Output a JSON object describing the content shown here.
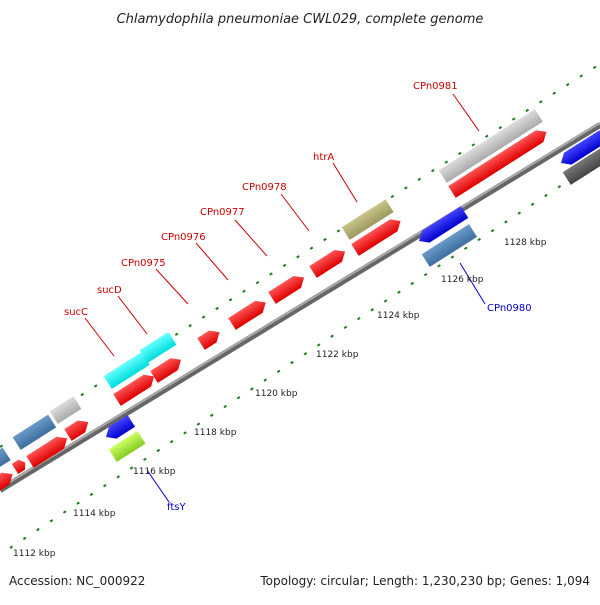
{
  "title": "Chlamydophila pneumoniae CWL029, complete genome",
  "footer": {
    "accession": "Accession: NC_000922",
    "summary": "Topology: circular; Length: 1,230,230 bp; Genes: 1,094"
  },
  "colors": {
    "forward_label": "#cc0000",
    "reverse_label": "#0000cc",
    "backbone": "#888888",
    "tick": "#1f7a1f"
  },
  "scale_ticks": [
    {
      "label": "1112 kbp"
    },
    {
      "label": "1114 kbp"
    },
    {
      "label": "1116 kbp"
    },
    {
      "label": "1118 kbp"
    },
    {
      "label": "1120 kbp"
    },
    {
      "label": "1122 kbp"
    },
    {
      "label": "1124 kbp"
    },
    {
      "label": "1126 kbp"
    },
    {
      "label": "1128 kbp"
    }
  ],
  "gene_labels": [
    {
      "name": "sucC",
      "strand": "forward"
    },
    {
      "name": "sucD",
      "strand": "forward"
    },
    {
      "name": "CPn0975",
      "strand": "forward"
    },
    {
      "name": "CPn0976",
      "strand": "forward"
    },
    {
      "name": "CPn0977",
      "strand": "forward"
    },
    {
      "name": "CPn0978",
      "strand": "forward"
    },
    {
      "name": "htrA",
      "strand": "forward"
    },
    {
      "name": "CPn0981",
      "strand": "forward"
    },
    {
      "name": "CPn0980",
      "strand": "reverse"
    },
    {
      "name": "ftsY",
      "strand": "reverse"
    }
  ]
}
